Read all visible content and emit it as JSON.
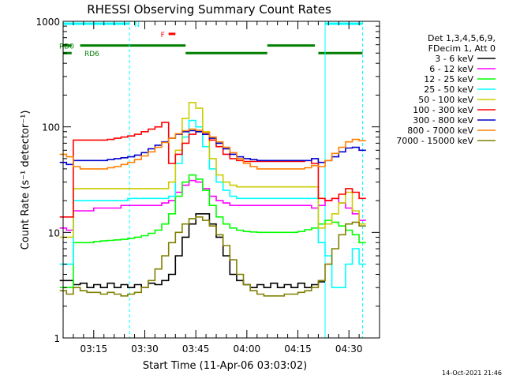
{
  "chart_data": {
    "type": "line",
    "title": "RHESSI Observing Summary Count Rates",
    "xlabel": "Start Time (11-Apr-06 03:03:02)",
    "ylabel": "Count Rate (s⁻¹ detector⁻¹)",
    "yscale": "log",
    "ylim": [
      1,
      1000
    ],
    "xlim": [
      "03:06",
      "04:39"
    ],
    "x_ticks": [
      "03:15",
      "03:30",
      "03:45",
      "04:00",
      "04:15",
      "04:30"
    ],
    "y_ticks": [
      "1",
      "10",
      "100",
      "1000"
    ],
    "footer": "14-Oct-2021 21:46",
    "legend_header": [
      "Det 1,3,4,5,6,9,",
      "FDecim 1, Att 0"
    ],
    "x_minutes": [
      6,
      8,
      10,
      12,
      14,
      16,
      18,
      20,
      22,
      24,
      26,
      28,
      30,
      32,
      34,
      36,
      38,
      40,
      42,
      44,
      46,
      48,
      50,
      52,
      54,
      56,
      58,
      60,
      62,
      64,
      66,
      68,
      70,
      72,
      74,
      76,
      78,
      80,
      82,
      84,
      86,
      88,
      90,
      92,
      94
    ],
    "series": [
      {
        "name": "3 - 6 keV",
        "color": "#000000",
        "values": [
          3.5,
          3.5,
          3.2,
          3.3,
          3.0,
          3.2,
          3.0,
          3.3,
          3.0,
          3.2,
          3.0,
          3.2,
          3.0,
          3.3,
          3.2,
          3.5,
          4,
          6,
          9,
          12,
          15,
          15,
          12,
          9,
          6,
          4,
          3.5,
          3.2,
          3.0,
          3.2,
          3.0,
          3.3,
          3.0,
          3.2,
          3.0,
          3.3,
          3.0,
          3.2,
          3.4,
          null,
          null,
          null,
          null,
          null,
          null
        ]
      },
      {
        "name": "6 - 12 keV",
        "color": "#ff00ff",
        "values": [
          11,
          10.5,
          16,
          16,
          16,
          17,
          17,
          17,
          17,
          18,
          18,
          18,
          18,
          18,
          18,
          19,
          20,
          24,
          28,
          31,
          30,
          26,
          22,
          20,
          19,
          18,
          18,
          18,
          18,
          18,
          18,
          18,
          18,
          18,
          18,
          18,
          18,
          17,
          18,
          20,
          21,
          19,
          17,
          15,
          13
        ]
      },
      {
        "name": "12 - 25 keV",
        "color": "#00ff00",
        "values": [
          3,
          3,
          8,
          8,
          8,
          8.2,
          8.3,
          8.4,
          8.5,
          8.6,
          8.8,
          9,
          9.3,
          9.8,
          10.5,
          12,
          15,
          22,
          30,
          35,
          32,
          25,
          18,
          14,
          12,
          11,
          10.5,
          10.2,
          10.1,
          10,
          10,
          10,
          10,
          10,
          10,
          10.2,
          10.6,
          11,
          12,
          13,
          12.5,
          11.5,
          10.5,
          9.5,
          8
        ]
      },
      {
        "name": "25 - 50 keV",
        "color": "#00ffff",
        "values": [
          5,
          5,
          20,
          20,
          20,
          20,
          20,
          20,
          20,
          20,
          21,
          21,
          21,
          21,
          21,
          21,
          22,
          45,
          80,
          115,
          100,
          65,
          40,
          30,
          25,
          22,
          21,
          21,
          21,
          21,
          21,
          21,
          21,
          21,
          21,
          21,
          21,
          21,
          8,
          6,
          3,
          3,
          5,
          7,
          5
        ]
      },
      {
        "name": "50 - 100 keV",
        "color": "#cccc00",
        "values": [
          9,
          9,
          26,
          26,
          26,
          26,
          26,
          26,
          26,
          26,
          26,
          26,
          26,
          26,
          26,
          26,
          30,
          60,
          120,
          170,
          150,
          90,
          50,
          35,
          30,
          28,
          27,
          27,
          27,
          27,
          27,
          27,
          27,
          27,
          27,
          27,
          27,
          27,
          11,
          12,
          15,
          19,
          24,
          16,
          12
        ]
      },
      {
        "name": "100 - 300 keV",
        "color": "#ff0000",
        "values": [
          14,
          14,
          75,
          75,
          75,
          75,
          75,
          76,
          78,
          80,
          82,
          85,
          90,
          95,
          100,
          110,
          45,
          55,
          70,
          85,
          90,
          85,
          75,
          65,
          55,
          50,
          48,
          47,
          47,
          47,
          47,
          47,
          47,
          47,
          47,
          47,
          48,
          45,
          21,
          20,
          21,
          23,
          26,
          24,
          21
        ]
      },
      {
        "name": "300 - 800 keV",
        "color": "#0000cc",
        "values": [
          46,
          44,
          48,
          48,
          48,
          48,
          48,
          49,
          50,
          51,
          52,
          54,
          57,
          62,
          67,
          72,
          78,
          85,
          90,
          92,
          90,
          85,
          78,
          70,
          62,
          55,
          52,
          50,
          49,
          48,
          48,
          48,
          48,
          48,
          48,
          48,
          48,
          50,
          46,
          48,
          52,
          58,
          63,
          64,
          60
        ]
      },
      {
        "name": "800 - 7000 keV",
        "color": "#ff8000",
        "values": [
          55,
          52,
          42,
          40,
          40,
          40,
          40,
          41,
          42,
          44,
          46,
          49,
          53,
          58,
          64,
          71,
          78,
          86,
          92,
          95,
          93,
          88,
          80,
          72,
          64,
          57,
          50,
          45,
          42,
          40,
          40,
          40,
          40,
          40,
          40,
          40,
          41,
          43,
          42,
          48,
          56,
          64,
          72,
          76,
          74
        ]
      },
      {
        "name": "7000 - 15000 keV",
        "color": "#808000",
        "values": [
          2.8,
          2.6,
          3.0,
          2.8,
          2.7,
          2.7,
          2.6,
          2.7,
          2.6,
          2.5,
          2.6,
          2.7,
          3.0,
          3.5,
          4.5,
          6,
          8,
          10,
          12,
          13.5,
          14,
          13,
          11.5,
          9.5,
          7.5,
          5.5,
          4,
          3.2,
          2.8,
          2.6,
          2.5,
          2.5,
          2.5,
          2.6,
          2.6,
          2.7,
          2.8,
          3.0,
          3.5,
          5,
          7,
          9.5,
          12,
          12.5,
          11.5
        ]
      }
    ],
    "state_bars": [
      {
        "label": "N",
        "color": "#00ffff",
        "level": 950,
        "segments": [
          [
            6,
            25.5
          ],
          [
            83,
            94
          ]
        ]
      },
      {
        "label": "F",
        "color": "#ff0000",
        "level": 760,
        "segments": [
          [
            37,
            39
          ]
        ]
      },
      {
        "label": "RD0",
        "color": "#008000",
        "level": 590,
        "segments": [
          [
            6,
            8.5
          ],
          [
            11,
            42
          ],
          [
            66,
            80
          ]
        ]
      },
      {
        "label": "RD6",
        "color": "#008000",
        "level": 500,
        "segments": [
          [
            6,
            8.5
          ],
          [
            42,
            66
          ],
          [
            81,
            94
          ]
        ]
      }
    ],
    "vlines": [
      {
        "color": "#00ffff",
        "style": "solid",
        "x": [
          6,
          83
        ]
      },
      {
        "color": "#00ffff",
        "style": "dashed",
        "x": [
          25.5,
          94
        ]
      }
    ]
  }
}
